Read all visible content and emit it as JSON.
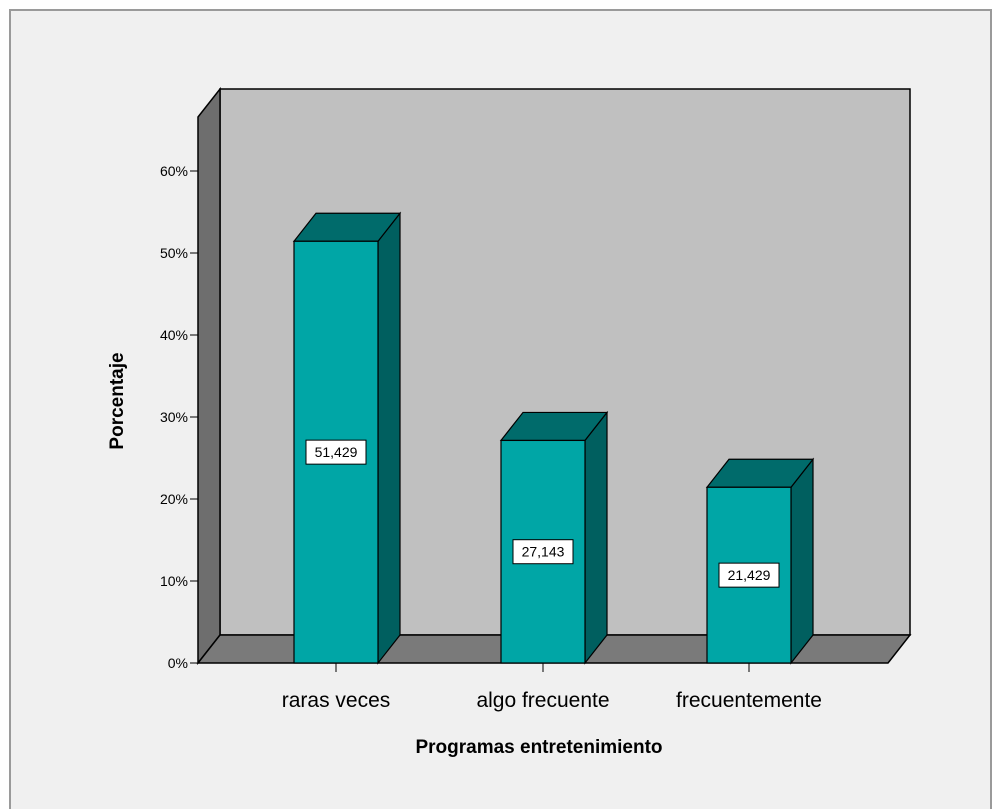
{
  "chart_data": {
    "type": "bar",
    "title": "",
    "xlabel": "Programas entretenimiento",
    "ylabel": "Porcentaje",
    "categories": [
      "raras veces",
      "algo frecuente",
      "frecuentemente"
    ],
    "values": [
      51.429,
      27.143,
      21.429
    ],
    "value_labels": [
      "51,429",
      "27,143",
      "21,429"
    ],
    "ylim": [
      0,
      60
    ],
    "yticks": [
      0,
      10,
      20,
      30,
      40,
      50,
      60
    ],
    "ytick_labels": [
      "0%",
      "10%",
      "20%",
      "30%",
      "40%",
      "50%",
      "60%"
    ],
    "grid": false,
    "legend": "none",
    "style": "3d",
    "colors": {
      "bar_front": "#00a6a6",
      "bar_top": "#006b6b",
      "bar_side": "#005f5f",
      "back_wall": "#c0c0c0",
      "side_wall": "#6e6e6e",
      "floor": "#7a7a7a",
      "background": "#f0f0f0"
    }
  }
}
